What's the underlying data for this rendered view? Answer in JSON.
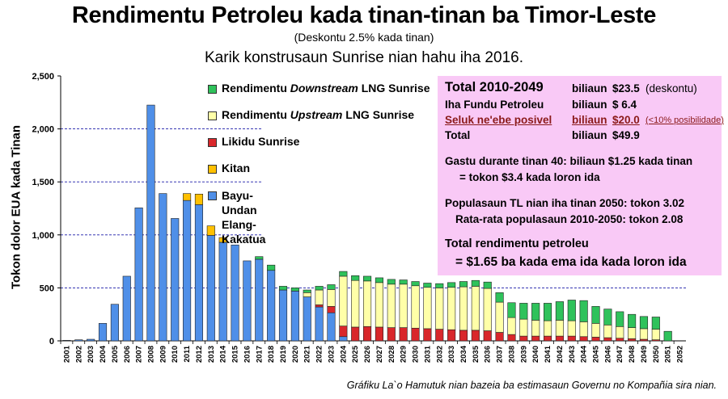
{
  "header": {
    "title": "Rendimentu Petroleu kada tinan-tinan ba Timor-Leste",
    "subtitle": "(Deskontu 2.5% kada tinan)",
    "subtitle2": "Karik konstrusaun Sunrise nian hahu iha 2016."
  },
  "caption": "Gráfiku La`o Hamutuk nian bazeia ba estimasaun Governu no Kompañia sira nian.",
  "legend": [
    {
      "label": "Rendimentu Downstream LNG Sunrise",
      "color": "#2fc25b"
    },
    {
      "label": "Rendimentu Upstream LNG Sunrise",
      "color": "#ffffa8"
    },
    {
      "label": "Likidu Sunrise",
      "color": "#d9272b"
    },
    {
      "label": "Kitan",
      "color": "#ffc000"
    },
    {
      "label": "Bayu-Undan\nElang-Kakatua",
      "color": "#4f8fe8"
    }
  ],
  "info": {
    "total_label": "Total 2010-2049",
    "total_unit": "biliaun",
    "total_value": "$23.5",
    "total_note": "(deskontu)",
    "fund_label": "Iha Fundu Petroleu",
    "fund_unit": "biliaun",
    "fund_value": "$ 6.4",
    "possible_label": "Seluk ne'ebe posivel",
    "possible_unit": "biliaun",
    "possible_value": "$20.0",
    "possible_note": "(<10% posibilidade)",
    "sum_label": "Total",
    "sum_unit": "biliaun",
    "sum_value": "$49.9",
    "spend1": "Gastu durante tinan 40: biliaun $1.25 kada tinan",
    "spend2": "= tokon $3.4 kada loron ida",
    "pop1": "Populasaun TL nian iha tinan 2050: tokon 3.02",
    "pop2": "Rata-rata populasaun 2010-2050: tokon 2.08",
    "rev1": "Total rendimentu petroleu",
    "rev2": "= $1.65 ba kada ema ida kada loron ida"
  },
  "chart_data": {
    "type": "bar",
    "stacked": true,
    "title": "Rendimentu Petroleu kada tinan-tinan ba Timor-Leste",
    "ylabel": "Tokon dolor EUA kada Tinan",
    "ylim": [
      0,
      2500
    ],
    "yticks": [
      "0",
      "500",
      "1,000",
      "1,500",
      "2,000",
      "2,500"
    ],
    "categories": [
      "2001",
      "2002",
      "2003",
      "2004",
      "2005",
      "2006",
      "2007",
      "2008",
      "2009",
      "2010",
      "2011",
      "2012",
      "2013",
      "2014",
      "2015",
      "2016",
      "2017",
      "2018",
      "2019",
      "2020",
      "2021",
      "2022",
      "2023",
      "2024",
      "2025",
      "2026",
      "2027",
      "2028",
      "2029",
      "2030",
      "2031",
      "2032",
      "2033",
      "2034",
      "2035",
      "2036",
      "2037",
      "2038",
      "2039",
      "2040",
      "2041",
      "2042",
      "2043",
      "2044",
      "2045",
      "2046",
      "2047",
      "2048",
      "2049",
      "2050",
      "2051",
      "2052"
    ],
    "series": [
      {
        "name": "Bayu-Undan\nElang-Kakatua",
        "color": "#4f8fe8",
        "values": [
          5,
          10,
          15,
          165,
          345,
          610,
          1255,
          2225,
          1390,
          1155,
          1325,
          1285,
          995,
          930,
          905,
          755,
          770,
          665,
          480,
          470,
          415,
          320,
          265,
          40,
          0,
          0,
          0,
          0,
          0,
          0,
          0,
          0,
          0,
          0,
          0,
          0,
          0,
          0,
          0,
          0,
          0,
          0,
          0,
          0,
          0,
          0,
          0,
          0,
          0,
          0,
          0,
          0
        ]
      },
      {
        "name": "Kitan",
        "color": "#ffc000",
        "values": [
          0,
          0,
          0,
          0,
          0,
          0,
          0,
          0,
          0,
          0,
          65,
          100,
          90,
          45,
          0,
          0,
          0,
          0,
          0,
          0,
          0,
          0,
          0,
          0,
          0,
          0,
          0,
          0,
          0,
          0,
          0,
          0,
          0,
          0,
          0,
          0,
          0,
          0,
          0,
          0,
          0,
          0,
          0,
          0,
          0,
          0,
          0,
          0,
          0,
          0,
          0,
          0
        ]
      },
      {
        "name": "Likidu Sunrise",
        "color": "#d9272b",
        "values": [
          0,
          0,
          0,
          0,
          0,
          0,
          0,
          0,
          0,
          0,
          0,
          0,
          0,
          0,
          0,
          0,
          0,
          0,
          0,
          0,
          0,
          20,
          60,
          100,
          130,
          135,
          130,
          125,
          125,
          120,
          115,
          110,
          105,
          100,
          100,
          95,
          80,
          60,
          45,
          45,
          45,
          45,
          45,
          40,
          35,
          30,
          25,
          20,
          15,
          10,
          0,
          0
        ]
      },
      {
        "name": "Rendimentu Upstream LNG Sunrise",
        "color": "#ffffa8",
        "values": [
          0,
          0,
          0,
          0,
          0,
          0,
          0,
          0,
          0,
          0,
          0,
          0,
          0,
          0,
          0,
          0,
          0,
          0,
          0,
          0,
          40,
          140,
          160,
          470,
          440,
          430,
          420,
          410,
          410,
          400,
          390,
          390,
          400,
          410,
          415,
          400,
          285,
          160,
          160,
          150,
          145,
          150,
          145,
          140,
          130,
          120,
          110,
          105,
          100,
          100,
          0,
          0
        ]
      },
      {
        "name": "Rendimentu Downstream LNG Sunrise",
        "color": "#2fc25b",
        "values": [
          0,
          0,
          0,
          0,
          0,
          0,
          0,
          0,
          0,
          0,
          0,
          0,
          0,
          0,
          0,
          0,
          25,
          50,
          35,
          30,
          25,
          35,
          45,
          45,
          45,
          45,
          45,
          45,
          40,
          40,
          40,
          40,
          45,
          50,
          55,
          60,
          90,
          140,
          150,
          160,
          165,
          175,
          195,
          200,
          160,
          150,
          140,
          125,
          115,
          115,
          90,
          0
        ]
      }
    ]
  }
}
